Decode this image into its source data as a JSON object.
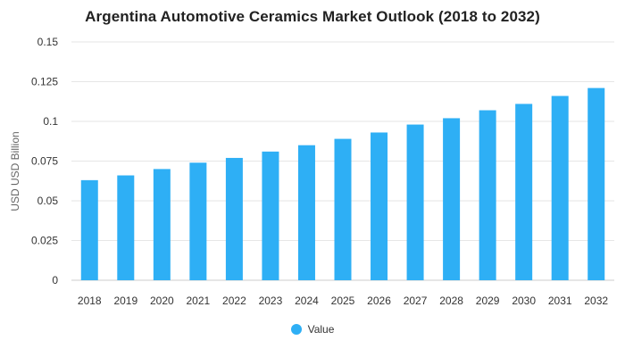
{
  "chart_data": {
    "type": "bar",
    "title": "Argentina Automotive Ceramics Market Outlook (2018 to 2032)",
    "xlabel": "",
    "ylabel": "USD USD Billion",
    "categories": [
      "2018",
      "2019",
      "2020",
      "2021",
      "2022",
      "2023",
      "2024",
      "2025",
      "2026",
      "2027",
      "2028",
      "2029",
      "2030",
      "2031",
      "2032"
    ],
    "series": [
      {
        "name": "Value",
        "values": [
          0.063,
          0.066,
          0.07,
          0.074,
          0.077,
          0.081,
          0.085,
          0.089,
          0.093,
          0.098,
          0.102,
          0.107,
          0.111,
          0.116,
          0.121
        ],
        "color": "#2eaff5"
      }
    ],
    "ylim": [
      0,
      0.15
    ],
    "yticks": [
      "0",
      "0.025",
      "0.05",
      "0.075",
      "0.1",
      "0.125",
      "0.15"
    ],
    "grid": true,
    "legend_position": "bottom"
  }
}
